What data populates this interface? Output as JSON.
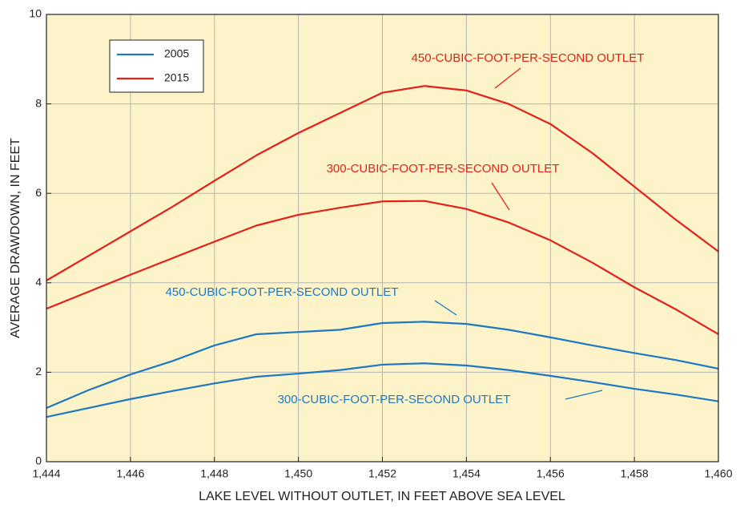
{
  "chart_data": {
    "type": "line",
    "x": [
      1444,
      1445,
      1446,
      1447,
      1448,
      1449,
      1450,
      1451,
      1452,
      1453,
      1454,
      1455,
      1456,
      1457,
      1458,
      1459,
      1460
    ],
    "series": [
      {
        "name": "2005",
        "color": "#1f78c1",
        "values": [
          1.2,
          1.6,
          1.95,
          2.25,
          2.6,
          2.85,
          2.9,
          2.95,
          3.1,
          3.13,
          3.08,
          2.95,
          2.78,
          2.6,
          2.43,
          2.27,
          2.08
        ]
      },
      {
        "name": "2005",
        "color": "#1f78c1",
        "values": [
          1.0,
          1.2,
          1.4,
          1.58,
          1.75,
          1.9,
          1.97,
          2.05,
          2.17,
          2.2,
          2.15,
          2.05,
          1.92,
          1.78,
          1.63,
          1.5,
          1.35
        ]
      },
      {
        "name": "2015",
        "color": "#e32119",
        "values": [
          4.05,
          4.6,
          5.15,
          5.7,
          6.28,
          6.85,
          7.35,
          7.8,
          8.25,
          8.4,
          8.3,
          8.0,
          7.55,
          6.9,
          6.15,
          5.4,
          4.7
        ]
      },
      {
        "name": "2015",
        "color": "#e32119",
        "values": [
          3.42,
          3.8,
          4.18,
          4.55,
          4.92,
          5.28,
          5.52,
          5.68,
          5.82,
          5.83,
          5.65,
          5.35,
          4.95,
          4.45,
          3.9,
          3.4,
          2.85
        ]
      }
    ],
    "annotations": [
      "450-CUBIC-FOOT-PER-SECOND OUTLET",
      "300-CUBIC-FOOT-PER-SECOND OUTLET",
      "450-CUBIC-FOOT-PER-SECOND OUTLET",
      "300-CUBIC-FOOT-PER-SECOND OUTLET"
    ],
    "x_label": "LAKE LEVEL WITHOUT OUTLET, IN FEET ABOVE SEA LEVEL",
    "y_label": "AVERAGE DRAWDOWN, IN FEET",
    "xlim": [
      1444,
      1460
    ],
    "xticks": [
      {
        "value": 1444,
        "label": "1,444"
      },
      {
        "value": 1446,
        "label": "1,446"
      },
      {
        "value": 1448,
        "label": "1,448"
      },
      {
        "value": 1450,
        "label": "1,450"
      },
      {
        "value": 1452,
        "label": "1,452"
      },
      {
        "value": 1454,
        "label": "1,454"
      },
      {
        "value": 1456,
        "label": "1,456"
      },
      {
        "value": 1458,
        "label": "1,458"
      },
      {
        "value": 1460,
        "label": "1,460"
      }
    ],
    "ylim": [
      0,
      10
    ],
    "yticks": [
      0,
      2,
      4,
      6,
      8,
      10
    ],
    "grid": true
  }
}
